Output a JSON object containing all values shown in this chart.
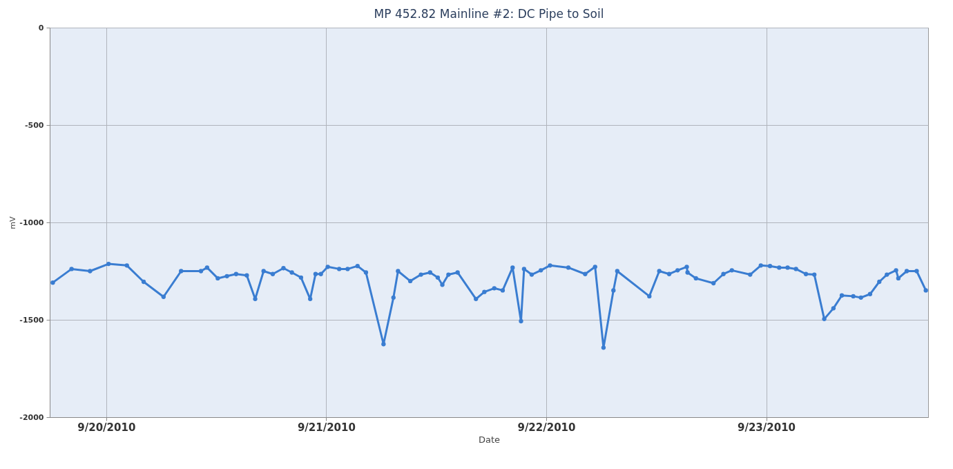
{
  "chart_data": {
    "type": "line",
    "title": "MP 452.82 Mainline #2: DC Pipe to Soil",
    "xlabel": "Date",
    "ylabel": "mV",
    "x": [
      "2010-09-19T18:10",
      "2010-09-19T20:13",
      "2010-09-19T22:14",
      "2010-09-20T00:15",
      "2010-09-20T02:15",
      "2010-09-20T04:05",
      "2010-09-20T06:15",
      "2010-09-20T08:10",
      "2010-09-20T10:20",
      "2010-09-20T11:00",
      "2010-09-20T12:10",
      "2010-09-20T13:10",
      "2010-09-20T14:10",
      "2010-09-20T15:20",
      "2010-09-20T16:15",
      "2010-09-20T17:10",
      "2010-09-20T18:10",
      "2010-09-20T19:20",
      "2010-09-20T20:15",
      "2010-09-20T21:15",
      "2010-09-20T22:15",
      "2010-09-20T22:50",
      "2010-09-20T23:25",
      "2010-09-21T00:10",
      "2010-09-21T01:25",
      "2010-09-21T02:20",
      "2010-09-21T03:25",
      "2010-09-21T04:20",
      "2010-09-21T06:15",
      "2010-09-21T07:20",
      "2010-09-21T07:50",
      "2010-09-21T09:10",
      "2010-09-21T10:20",
      "2010-09-21T11:20",
      "2010-09-21T12:10",
      "2010-09-21T12:40",
      "2010-09-21T13:20",
      "2010-09-21T14:20",
      "2010-09-21T16:20",
      "2010-09-21T17:15",
      "2010-09-21T18:20",
      "2010-09-21T19:15",
      "2010-09-21T20:20",
      "2010-09-21T21:15",
      "2010-09-21T21:35",
      "2010-09-21T22:25",
      "2010-09-21T23:25",
      "2010-09-22T00:25",
      "2010-09-22T02:25",
      "2010-09-22T04:15",
      "2010-09-22T05:20",
      "2010-09-22T06:15",
      "2010-09-22T07:20",
      "2010-09-22T07:45",
      "2010-09-22T11:15",
      "2010-09-22T12:20",
      "2010-09-22T13:25",
      "2010-09-22T14:20",
      "2010-09-22T15:20",
      "2010-09-22T15:25",
      "2010-09-22T16:20",
      "2010-09-22T18:15",
      "2010-09-22T19:20",
      "2010-09-22T20:15",
      "2010-09-22T22:15",
      "2010-09-22T23:25",
      "2010-09-23T00:25",
      "2010-09-23T01:25",
      "2010-09-23T02:20",
      "2010-09-23T03:15",
      "2010-09-23T04:20",
      "2010-09-23T05:15",
      "2010-09-23T06:20",
      "2010-09-23T07:20",
      "2010-09-23T08:15",
      "2010-09-23T09:30",
      "2010-09-23T10:20",
      "2010-09-23T11:20",
      "2010-09-23T12:20",
      "2010-09-23T13:10",
      "2010-09-23T14:10",
      "2010-09-23T14:25",
      "2010-09-23T15:20",
      "2010-09-23T16:25",
      "2010-09-23T17:25"
    ],
    "series": [
      {
        "color": "#3a7dd1",
        "values": [
          -1309,
          -1239,
          -1250,
          -1213,
          -1221,
          -1305,
          -1382,
          -1250,
          -1250,
          -1232,
          -1287,
          -1276,
          -1265,
          -1272,
          -1393,
          -1250,
          -1265,
          -1235,
          -1257,
          -1283,
          -1393,
          -1265,
          -1265,
          -1228,
          -1239,
          -1239,
          -1224,
          -1257,
          -1625,
          -1386,
          -1250,
          -1301,
          -1268,
          -1257,
          -1283,
          -1320,
          -1268,
          -1257,
          -1393,
          -1357,
          -1338,
          -1349,
          -1232,
          -1507,
          -1239,
          -1268,
          -1246,
          -1221,
          -1232,
          -1265,
          -1228,
          -1643,
          -1349,
          -1250,
          -1379,
          -1250,
          -1265,
          -1246,
          -1228,
          -1257,
          -1287,
          -1312,
          -1265,
          -1246,
          -1268,
          -1221,
          -1224,
          -1232,
          -1232,
          -1239,
          -1265,
          -1268,
          -1496,
          -1441,
          -1375,
          -1379,
          -1386,
          -1368,
          -1305,
          -1268,
          -1246,
          -1287,
          -1250,
          -1250,
          -1349
        ]
      }
    ],
    "xlim": [
      "2010-09-19T17:50",
      "2010-09-23T17:40"
    ],
    "xticks": [
      {
        "value": "2010-09-20",
        "label": "9/20/2010"
      },
      {
        "value": "2010-09-21",
        "label": "9/21/2010"
      },
      {
        "value": "2010-09-22",
        "label": "9/22/2010"
      },
      {
        "value": "2010-09-23",
        "label": "9/23/2010"
      }
    ],
    "ylim": [
      -2000,
      0
    ],
    "yticks": [
      0,
      -500,
      -1000,
      -1500,
      -2000
    ],
    "grid": true,
    "marker": "circle",
    "line_style": "solid"
  }
}
